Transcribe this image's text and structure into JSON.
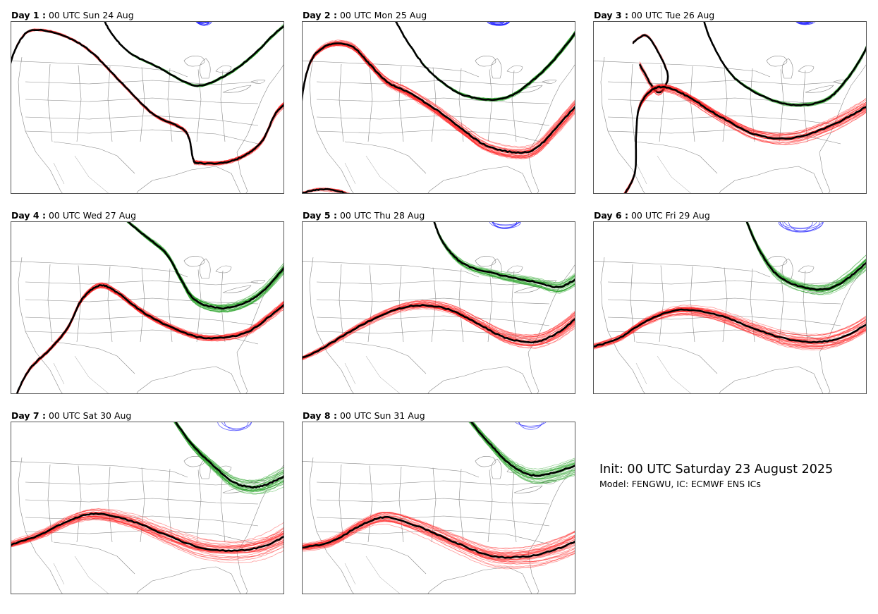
{
  "panels": [
    {
      "day": "Day 1 :",
      "date": "00 UTC Sun 24 Aug"
    },
    {
      "day": "Day 2 :",
      "date": "00 UTC Mon 25 Aug"
    },
    {
      "day": "Day 3 :",
      "date": "00 UTC Tue 26 Aug"
    },
    {
      "day": "Day 4 :",
      "date": "00 UTC Wed 27 Aug"
    },
    {
      "day": "Day 5 :",
      "date": "00 UTC Thu 28 Aug"
    },
    {
      "day": "Day 6 :",
      "date": "00 UTC Fri 29 Aug"
    },
    {
      "day": "Day 7 :",
      "date": "00 UTC Sat 30 Aug"
    },
    {
      "day": "Day 8 :",
      "date": "00 UTC Sun 31 Aug"
    }
  ],
  "info": {
    "init": "Init: 00 UTC Saturday 23 August 2025",
    "model": "Model: FENGWU, IC: ECMWF ENS ICs"
  },
  "colors": {
    "red_contour": "#ff2020",
    "green_contour": "#20a020",
    "blue_contour": "#2020ff",
    "ensemble_mean": "#000000",
    "map_lines": "#888888",
    "frame": "#555555"
  }
}
